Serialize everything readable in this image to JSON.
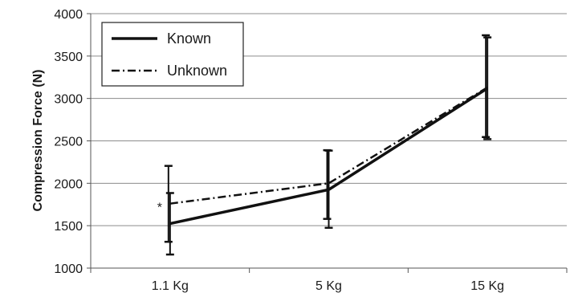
{
  "chart_data": {
    "type": "line",
    "title": "",
    "xlabel": "",
    "ylabel": "Compression Force (N)",
    "categories": [
      "1.1 Kg",
      "5 Kg",
      "15 Kg"
    ],
    "ylim": [
      1000,
      4000
    ],
    "yticks": [
      1000,
      1500,
      2000,
      2500,
      3000,
      3500,
      4000
    ],
    "grid": "horizontal",
    "legend": "top-left",
    "series": [
      {
        "name": "Known",
        "style": "solid",
        "color": "#111111",
        "values": [
          1525,
          1925,
          3120
        ],
        "error_low": [
          1160,
          1475,
          2520
        ],
        "error_high": [
          1885,
          2385,
          3720
        ]
      },
      {
        "name": "Unknown",
        "style": "dash-dot",
        "color": "#111111",
        "values": [
          1760,
          2000,
          3130
        ],
        "error_low": [
          1310,
          1580,
          2545
        ],
        "error_high": [
          2205,
          2390,
          3745
        ]
      }
    ],
    "annotations": [
      {
        "text": "*",
        "category": "1.1 Kg",
        "series": "Unknown"
      }
    ]
  }
}
